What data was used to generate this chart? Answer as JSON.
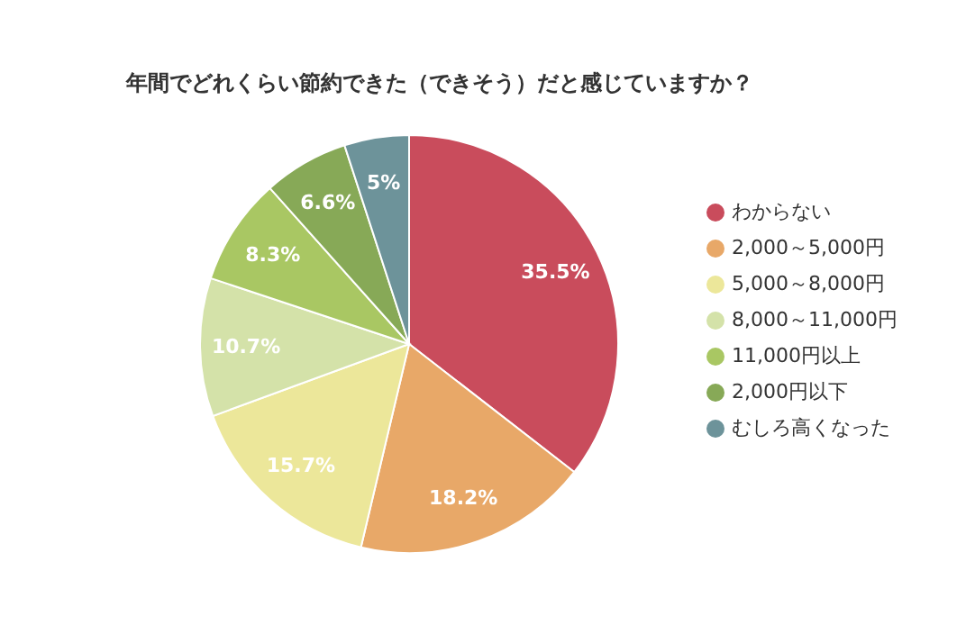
{
  "chart_data": {
    "type": "pie",
    "title": "年間でどれくらい節約できた（できそう）だと感じていますか？",
    "categories": [
      "わからない",
      "2,000～5,000円",
      "5,000～8,000円",
      "8,000～11,000円",
      "11,000円以上",
      "2,000円以下",
      "むしろ高くなった"
    ],
    "values": [
      35.5,
      18.2,
      15.7,
      10.7,
      8.3,
      6.6,
      5
    ],
    "colors": [
      "#c94c5c",
      "#e8a868",
      "#ece79a",
      "#d4e2a9",
      "#a9c763",
      "#87a957",
      "#6d939a"
    ],
    "value_labels": [
      "35.5%",
      "18.2%",
      "15.7%",
      "10.7%",
      "8.3%",
      "6.6%",
      "5%"
    ],
    "legend": "right"
  }
}
